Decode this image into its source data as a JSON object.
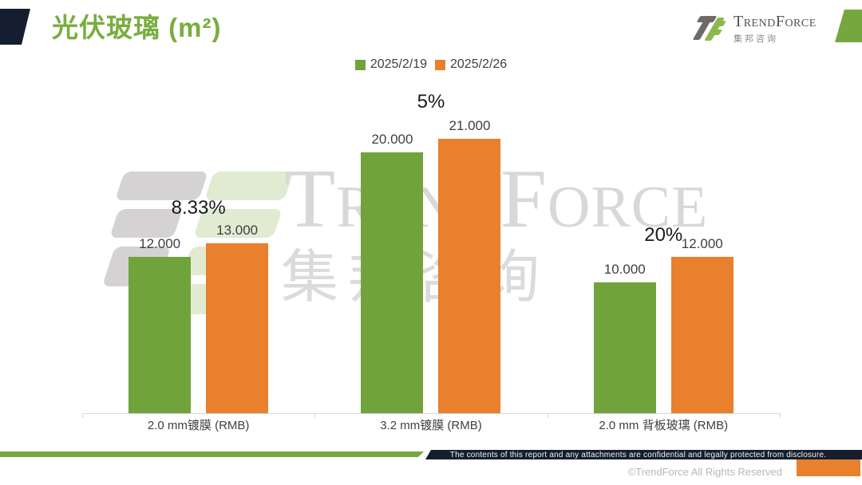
{
  "header": {
    "title": "光伏玻璃 (m²)",
    "brand": {
      "name": "TrendForce",
      "subname": "集邦咨询"
    }
  },
  "chart_data": {
    "type": "bar",
    "title": "光伏玻璃 (m²)",
    "categories": [
      "2.0 mm镀膜 (RMB)",
      "3.2 mm镀膜 (RMB)",
      "2.0 mm 背板玻璃 (RMB)"
    ],
    "series": [
      {
        "name": "2025/2/19",
        "color": "#71a33d",
        "values": [
          12.0,
          20.0,
          10.0
        ]
      },
      {
        "name": "2025/2/26",
        "color": "#e8802e",
        "values": [
          13.0,
          21.0,
          12.0
        ]
      }
    ],
    "value_labels": [
      [
        "12.000",
        "20.000",
        "10.000"
      ],
      [
        "13.000",
        "21.000",
        "12.000"
      ]
    ],
    "change_labels": [
      "8.33%",
      "5%",
      "20%"
    ],
    "ylim": [
      0,
      25
    ],
    "grid": false,
    "legend_position": "top"
  },
  "watermark": {
    "text": "TrendForce",
    "subtext": "集邦咨询"
  },
  "footer": {
    "confidentiality": "The contents of this report and any attachments are confidential and legally protected from disclosure.",
    "copyright": "©TrendForce All Rights Reserved"
  }
}
